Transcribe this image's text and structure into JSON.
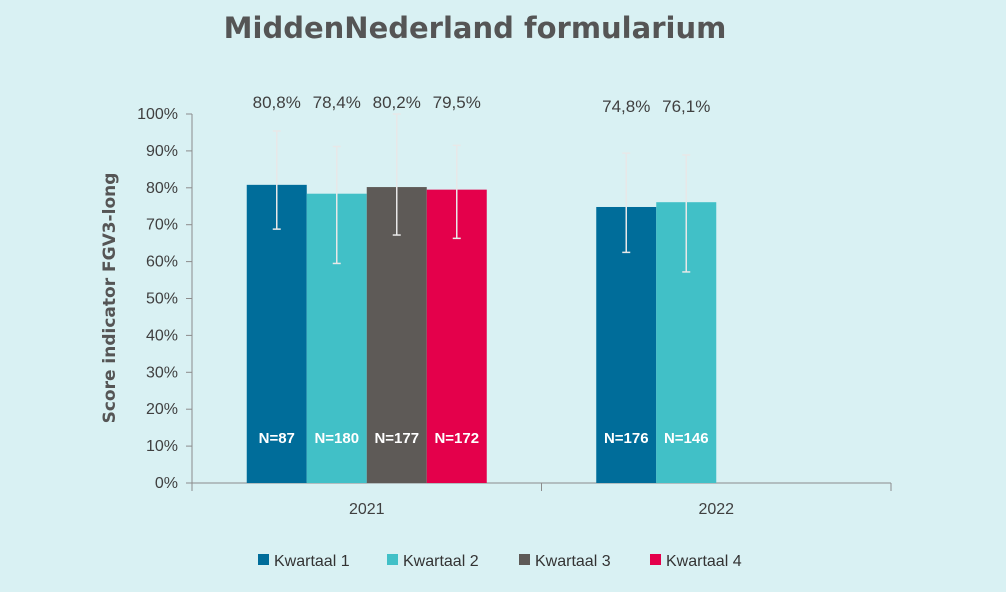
{
  "chart_data": {
    "type": "bar",
    "title": "MiddenNederland formularium",
    "ylabel": "Score indicator FGV3-long",
    "xlabel": "",
    "ylim": [
      0,
      100
    ],
    "y_tick_labels": [
      "0%",
      "10%",
      "20%",
      "30%",
      "40%",
      "50%",
      "60%",
      "70%",
      "80%",
      "90%",
      "100%"
    ],
    "categories": [
      "2021",
      "2022"
    ],
    "grid": false,
    "legend_position": "bottom",
    "series": [
      {
        "name": "Kwartaal 1",
        "color": "#006d9a",
        "values": [
          80.8,
          74.8
        ],
        "labels": [
          "80,8%",
          "74,8%"
        ],
        "n_labels": [
          "N=87",
          "N=176"
        ],
        "error_low": [
          68.8,
          62.5
        ],
        "error_high": [
          95.4,
          89.4
        ]
      },
      {
        "name": "Kwartaal 2",
        "color": "#41c0c7",
        "values": [
          78.4,
          76.1
        ],
        "labels": [
          "78,4%",
          "76,1%"
        ],
        "n_labels": [
          "N=180",
          "N=146"
        ],
        "error_low": [
          59.5,
          57.2
        ],
        "error_high": [
          91.2,
          88.9
        ]
      },
      {
        "name": "Kwartaal 3",
        "color": "#5e5a57",
        "values": [
          80.2,
          null
        ],
        "labels": [
          "80,2%",
          null
        ],
        "n_labels": [
          "N=177",
          null
        ],
        "error_low": [
          67.2,
          null
        ],
        "error_high": [
          100.0,
          null
        ]
      },
      {
        "name": "Kwartaal 4",
        "color": "#e4004b",
        "values": [
          79.5,
          null
        ],
        "labels": [
          "79,5%",
          null
        ],
        "n_labels": [
          "N=172",
          null
        ],
        "error_low": [
          66.3,
          null
        ],
        "error_high": [
          91.5,
          null
        ]
      }
    ]
  }
}
